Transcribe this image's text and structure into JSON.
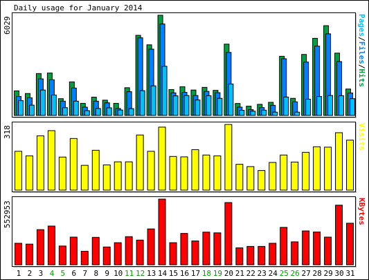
{
  "chart_data": {
    "type": "bar",
    "title": "Daily usage for January 2014",
    "categories": [
      "1",
      "2",
      "3",
      "4",
      "5",
      "6",
      "7",
      "8",
      "9",
      "10",
      "11",
      "12",
      "13",
      "14",
      "15",
      "16",
      "17",
      "18",
      "19",
      "20",
      "21",
      "22",
      "23",
      "24",
      "25",
      "26",
      "27",
      "28",
      "29",
      "30",
      "31"
    ],
    "weekend_days": [
      "4",
      "5",
      "11",
      "12",
      "18",
      "19",
      "25",
      "26"
    ],
    "panels": [
      {
        "id": "hits",
        "max_label": "6029",
        "ymax": 6029,
        "legend": [
          {
            "text": "Pages",
            "color": "#00c0ff"
          },
          {
            "text": "/",
            "color": "#000000"
          },
          {
            "text": "Files",
            "color": "#0080ff"
          },
          {
            "text": "/",
            "color": "#000000"
          },
          {
            "text": "Hits",
            "color": "#00a040"
          }
        ],
        "series": [
          {
            "name": "Hits",
            "color": "#00a040",
            "values": [
              1480,
              1320,
              2520,
              2550,
              1010,
              2020,
              730,
              1100,
              920,
              730,
              1670,
              4820,
              4250,
              6029,
              1560,
              1730,
              1530,
              1690,
              1510,
              4290,
              720,
              560,
              670,
              790,
              3560,
              1030,
              3670,
              4640,
              5400,
              3750,
              1590
            ]
          },
          {
            "name": "Files",
            "color": "#0080ff",
            "values": [
              1140,
              1060,
              2200,
              2150,
              860,
              1650,
              500,
              860,
              760,
              420,
              1430,
              4670,
              3990,
              5500,
              1360,
              1390,
              1200,
              1450,
              1370,
              3790,
              500,
              350,
              470,
              610,
              3410,
              820,
              3210,
              4170,
              4910,
              3240,
              1350
            ]
          },
          {
            "name": "Pages",
            "color": "#00c0ff",
            "values": [
              890,
              620,
              1530,
              1230,
              470,
              860,
              290,
              420,
              460,
              330,
              410,
              1490,
              1780,
              2960,
              1180,
              1200,
              930,
              1190,
              1030,
              1890,
              310,
              260,
              320,
              200,
              1110,
              200,
              980,
              1140,
              1200,
              1190,
              1010
            ]
          }
        ]
      },
      {
        "id": "visits",
        "max_label": "318",
        "ymax": 318,
        "legend": [
          {
            "text": "Visits",
            "color": "#ffff00"
          }
        ],
        "series": [
          {
            "name": "Visits",
            "color": "#ffff00",
            "values": [
              188,
              166,
              263,
              288,
              160,
              250,
              120,
              193,
              122,
              137,
              137,
              267,
              188,
              305,
              163,
              161,
              196,
              170,
              166,
              318,
              125,
              114,
              95,
              134,
              170,
              136,
              183,
              210,
              208,
              278,
              242
            ]
          }
        ]
      },
      {
        "id": "kbytes",
        "max_label": "552953",
        "ymax": 552953,
        "legend": [
          {
            "text": "KBytes",
            "color": "#ff0000"
          }
        ],
        "series": [
          {
            "name": "KBytes",
            "color": "#ff0000",
            "values": [
              181000,
              174000,
              296000,
              326000,
              158000,
              233000,
              114000,
              231000,
              150000,
              186000,
              237000,
              208000,
              302000,
              552953,
              186000,
              264000,
              201000,
              275000,
              269000,
              524000,
              143000,
              155000,
              155000,
              181000,
              315000,
              193000,
              285000,
              276000,
              233000,
              502000,
              350000
            ]
          }
        ]
      }
    ]
  }
}
